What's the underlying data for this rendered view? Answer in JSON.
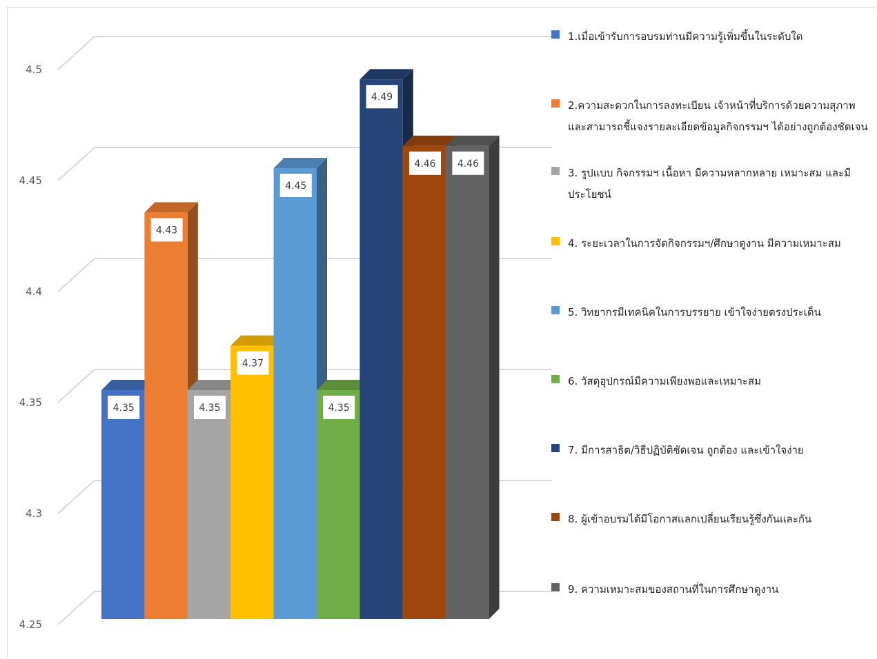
{
  "chart_data": {
    "type": "bar",
    "title": "",
    "xlabel": "",
    "ylabel": "",
    "ylim": [
      4.25,
      4.5
    ],
    "yticks": [
      "4.25",
      "4.3",
      "4.35",
      "4.4",
      "4.45",
      "4.5"
    ],
    "grid": true,
    "legend_position": "right",
    "three_d": true,
    "series": [
      {
        "name": "1.เมื่อเข้ารับการอบรมท่านมีความรู้เพิ่มขึ้นในระดับใด",
        "value": 4.35,
        "label": "4.35",
        "color": "#4472c4"
      },
      {
        "name": "2.ความสะดวกในการลงทะเบียน  เจ้าหน้าที่บริการด้วยความสุภาพและสามารถชี้แจงรายละเอียดข้อมูลกิจกรรมฯ ได้อย่างถูกต้องชัดเจน",
        "value": 4.43,
        "label": "4.43",
        "color": "#ed7d31"
      },
      {
        "name": "3. รูปแบบ กิจกรรมฯ เนื้อหา มีความหลากหลาย  เหมาะสม  และมีประโยชน์",
        "value": 4.35,
        "label": "4.35",
        "color": "#a5a5a5"
      },
      {
        "name": "4. ระยะเวลาในการจัดกิจกรรมฯ/ศึกษาดูงาน  มีความเหมาะสม",
        "value": 4.37,
        "label": "4.37",
        "color": "#ffc000"
      },
      {
        "name": "5. วิทยากรมีเทคนิคในการบรรยาย  เข้าใจง่ายตรงประเด็น",
        "value": 4.45,
        "label": "4.45",
        "color": "#5b9bd5"
      },
      {
        "name": "6. วัสดุอุปกรณ์มีความเพียงพอและเหมาะสม",
        "value": 4.35,
        "label": "4.35",
        "color": "#70ad47"
      },
      {
        "name": "7. มีการสาธิต/วิธีปฏิบัติชัดเจน  ถูกต้อง และเข้าใจง่าย",
        "value": 4.49,
        "label": "4.49",
        "color": "#264478"
      },
      {
        "name": "8. ผู้เข้าอบรมได้มีโอกาสแลกเปลี่ยนเรียนรู้ซึ่งกันและกัน",
        "value": 4.46,
        "label": "4.46",
        "color": "#9e480e"
      },
      {
        "name": "9. ความเหมาะสมของสถานที่ในการศึกษาดูงาน",
        "value": 4.46,
        "label": "4.46",
        "color": "#636363"
      }
    ]
  }
}
